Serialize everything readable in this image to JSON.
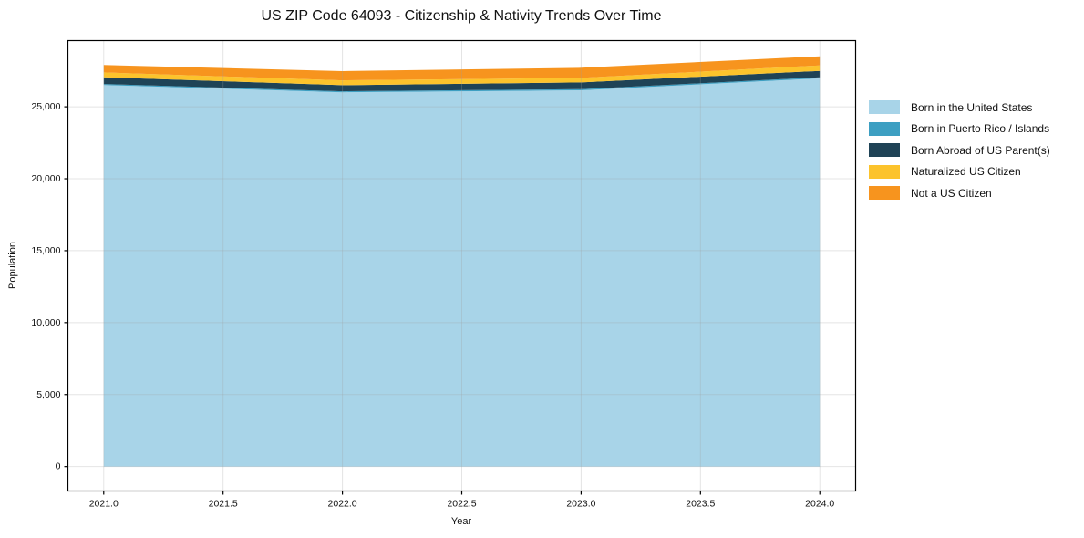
{
  "chart_data": {
    "type": "area",
    "stacked": true,
    "title": "US ZIP Code 64093 - Citizenship & Nativity Trends Over Time",
    "xlabel": "Year",
    "ylabel": "Population",
    "x": [
      2021,
      2022,
      2023,
      2024
    ],
    "series": [
      {
        "name": "Born in the United States",
        "color": "#a8d4e8",
        "values": [
          26515,
          26005,
          26150,
          26980
        ]
      },
      {
        "name": "Born in Puerto Rico / Islands",
        "color": "#3d9fc2",
        "values": [
          70,
          70,
          70,
          70
        ]
      },
      {
        "name": "Born Abroad of US Parent(s)",
        "color": "#1f4356",
        "values": [
          465,
          425,
          470,
          445
        ]
      },
      {
        "name": "Naturalized US Citizen",
        "color": "#fcc32c",
        "values": [
          340,
          340,
          320,
          380
        ]
      },
      {
        "name": "Not a US Citizen",
        "color": "#f7941e",
        "values": [
          510,
          635,
          700,
          635
        ]
      }
    ],
    "totals": [
      27900,
      27475,
      27710,
      28510
    ],
    "xlim": [
      2020.85,
      2024.15
    ],
    "ylim": [
      -1700,
      29600
    ],
    "xticks": {
      "values": [
        2021.0,
        2021.5,
        2022.0,
        2022.5,
        2023.0,
        2023.5,
        2024.0
      ],
      "labels": [
        "2021.0",
        "2021.5",
        "2022.0",
        "2022.5",
        "2023.0",
        "2023.5",
        "2024.0"
      ]
    },
    "yticks": {
      "values": [
        0,
        5000,
        10000,
        15000,
        20000,
        25000
      ],
      "labels": [
        "0",
        "5,000",
        "10,000",
        "15,000",
        "20,000",
        "25,000"
      ]
    },
    "grid": true,
    "legend_position": "right-outside"
  },
  "colors": {
    "grid": "#9e9e9e",
    "spine": "#000000",
    "text": "#111111",
    "background": "#ffffff"
  }
}
